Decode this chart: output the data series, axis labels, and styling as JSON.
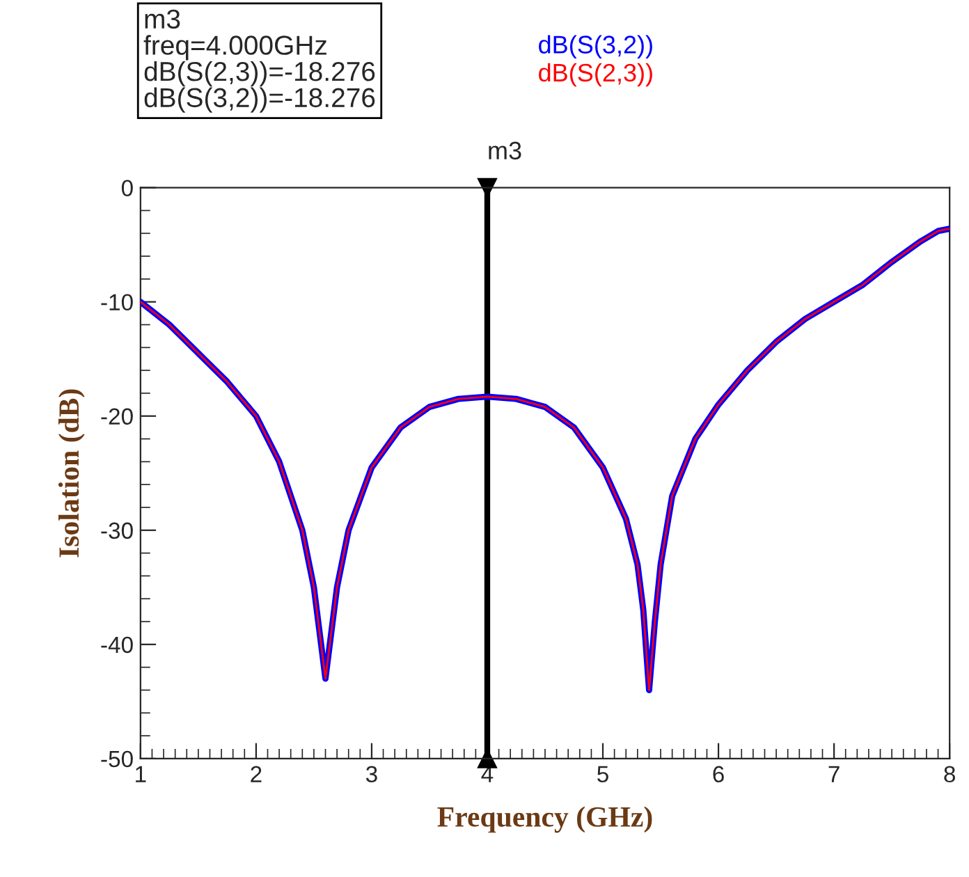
{
  "chart_data": {
    "type": "line",
    "xlabel": "Frequency (GHz)",
    "ylabel": "Isolation (dB)",
    "x": [
      1,
      1.25,
      1.5,
      1.75,
      2,
      2.2,
      2.4,
      2.5,
      2.55,
      2.6,
      2.65,
      2.7,
      2.8,
      3,
      3.25,
      3.5,
      3.75,
      4,
      4.25,
      4.5,
      4.75,
      5,
      5.2,
      5.3,
      5.35,
      5.4,
      5.45,
      5.5,
      5.6,
      5.8,
      6,
      6.25,
      6.5,
      6.75,
      7,
      7.25,
      7.5,
      7.75,
      7.9,
      8
    ],
    "series": [
      {
        "name": "dB(S(3,2))",
        "color": "#0000ff",
        "values": [
          -10,
          -12,
          -14.5,
          -17,
          -20,
          -24,
          -30,
          -35,
          -39,
          -43,
          -39,
          -35,
          -30,
          -24.5,
          -21,
          -19.2,
          -18.5,
          -18.3,
          -18.5,
          -19.2,
          -21,
          -24.5,
          -29,
          -33,
          -37,
          -44,
          -38,
          -33,
          -27,
          -22,
          -19,
          -16,
          -13.5,
          -11.5,
          -10,
          -8.5,
          -6.5,
          -4.7,
          -3.8,
          -3.6
        ]
      },
      {
        "name": "dB(S(2,3))",
        "color": "#ff0000",
        "values": [
          -10,
          -12,
          -14.5,
          -17,
          -20,
          -24,
          -30,
          -35,
          -39,
          -43,
          -39,
          -35,
          -30,
          -24.5,
          -21,
          -19.2,
          -18.5,
          -18.3,
          -18.5,
          -19.2,
          -21,
          -24.5,
          -29,
          -33,
          -37,
          -44,
          -38,
          -33,
          -27,
          -22,
          -19,
          -16,
          -13.5,
          -11.5,
          -10,
          -8.5,
          -6.5,
          -4.7,
          -3.8,
          -3.6
        ]
      }
    ],
    "xlim": [
      1,
      8
    ],
    "xticks": [
      1,
      2,
      3,
      4,
      5,
      6,
      7,
      8
    ],
    "ylim": [
      -50,
      0
    ],
    "yticks": [
      -50,
      -40,
      -30,
      -20,
      -10,
      0
    ],
    "grid": false,
    "legend": "top",
    "marker": "none",
    "line_style": "solid",
    "ref_lines": [
      {
        "axis": "x",
        "value": 4,
        "label": "m3",
        "color": "#000000"
      }
    ],
    "annotations": [
      "m3\nfreq=4.000GHz\ndB(S(2,3))=-18.276\ndB(S(3,2))=-18.276"
    ]
  }
}
